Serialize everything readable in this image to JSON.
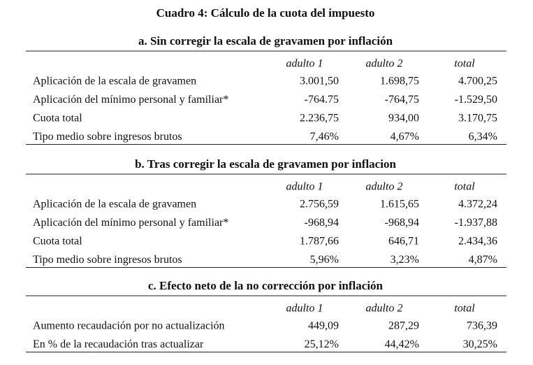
{
  "title": "Cuadro 4: Cálculo de la cuota del impuesto",
  "sections": [
    {
      "heading": "a. Sin corregir la escala de gravamen por inflación",
      "columns": [
        "adulto 1",
        "adulto 2",
        "total"
      ],
      "rows": [
        {
          "label": "Aplicación de la escala de gravamen",
          "values": [
            "3.001,50",
            "1.698,75",
            "4.700,25"
          ]
        },
        {
          "label": "Aplicación del mínimo personal y familiar*",
          "values": [
            "-764.75",
            "-764,75",
            "-1.529,50"
          ]
        },
        {
          "label": "Cuota total",
          "values": [
            "2.236,75",
            "934,00",
            "3.170,75"
          ]
        },
        {
          "label": "Tipo medio sobre ingresos brutos",
          "values": [
            "7,46%",
            "4,67%",
            "6,34%"
          ]
        }
      ]
    },
    {
      "heading": "b. Tras corregir la escala de gravamen por inflacion",
      "columns": [
        "adulto 1",
        "adulto 2",
        "total"
      ],
      "rows": [
        {
          "label": "Aplicación de la escala de gravamen",
          "values": [
            "2.756,59",
            "1.615,65",
            "4.372,24"
          ]
        },
        {
          "label": "Aplicación del mínimo personal y familiar*",
          "values": [
            "-968,94",
            "-968,94",
            "-1.937,88"
          ]
        },
        {
          "label": "Cuota total",
          "values": [
            "1.787,66",
            "646,71",
            "2.434,36"
          ]
        },
        {
          "label": "Tipo medio sobre ingresos brutos",
          "values": [
            "5,96%",
            "3,23%",
            "4,87%"
          ]
        }
      ]
    },
    {
      "heading": "c. Efecto neto de la no corrección por inflación",
      "columns": [
        "adulto 1",
        "adulto 2",
        "total"
      ],
      "rows": [
        {
          "label": "Aumento recaudación por no actualización",
          "values": [
            "449,09",
            "287,29",
            "736,39"
          ]
        },
        {
          "label": "En % de la recaudación tras actualizar",
          "values": [
            "25,12%",
            "44,42%",
            "30,25%"
          ]
        }
      ]
    }
  ]
}
